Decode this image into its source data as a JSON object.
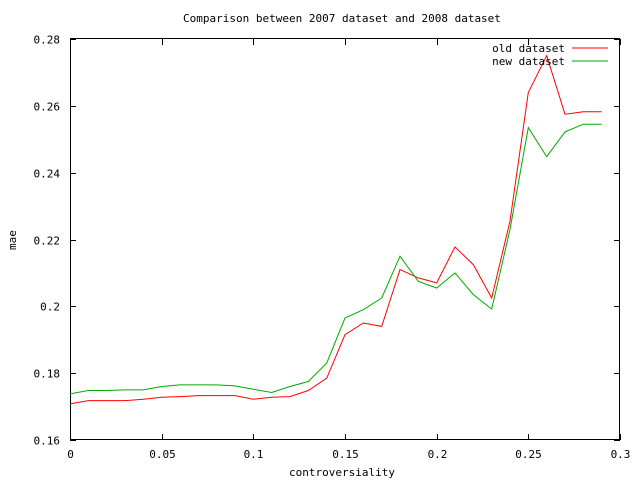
{
  "chart_data": {
    "type": "line",
    "title": "Comparison between 2007 dataset and 2008 dataset",
    "xlabel": "controversiality",
    "ylabel": "mae",
    "xlim": [
      0,
      0.3
    ],
    "ylim": [
      0.16,
      0.28
    ],
    "x_ticks": [
      "0",
      "0.05",
      "0.1",
      "0.15",
      "0.2",
      "0.25",
      "0.3"
    ],
    "y_ticks": [
      "0.16",
      "0.18",
      "0.2",
      "0.22",
      "0.24",
      "0.26",
      "0.28"
    ],
    "grid": false,
    "legend_position": "top-right",
    "x": [
      0,
      0.01,
      0.02,
      0.03,
      0.04,
      0.05,
      0.06,
      0.07,
      0.08,
      0.09,
      0.1,
      0.11,
      0.12,
      0.13,
      0.14,
      0.15,
      0.16,
      0.17,
      0.18,
      0.19,
      0.2,
      0.21,
      0.22,
      0.23,
      0.24,
      0.25,
      0.26,
      0.27,
      0.28,
      0.29
    ],
    "series": [
      {
        "name": "old dataset",
        "color": "#ff0000",
        "values": [
          0.1708,
          0.1718,
          0.1718,
          0.1718,
          0.1722,
          0.1728,
          0.173,
          0.1733,
          0.1733,
          0.1733,
          0.1722,
          0.1728,
          0.173,
          0.1748,
          0.1785,
          0.1915,
          0.195,
          0.194,
          0.211,
          0.2085,
          0.207,
          0.2178,
          0.2125,
          0.2025,
          0.2255,
          0.264,
          0.275,
          0.2575,
          0.2582,
          0.2582
        ]
      },
      {
        "name": "new dataset",
        "color": "#00aa00",
        "values": [
          0.1738,
          0.1748,
          0.1748,
          0.175,
          0.175,
          0.176,
          0.1765,
          0.1765,
          0.1765,
          0.1762,
          0.1752,
          0.1742,
          0.176,
          0.1775,
          0.183,
          0.1965,
          0.199,
          0.2025,
          0.215,
          0.2075,
          0.2055,
          0.21,
          0.2035,
          0.1992,
          0.223,
          0.2535,
          0.2448,
          0.2522,
          0.2545,
          0.2545
        ]
      }
    ]
  }
}
